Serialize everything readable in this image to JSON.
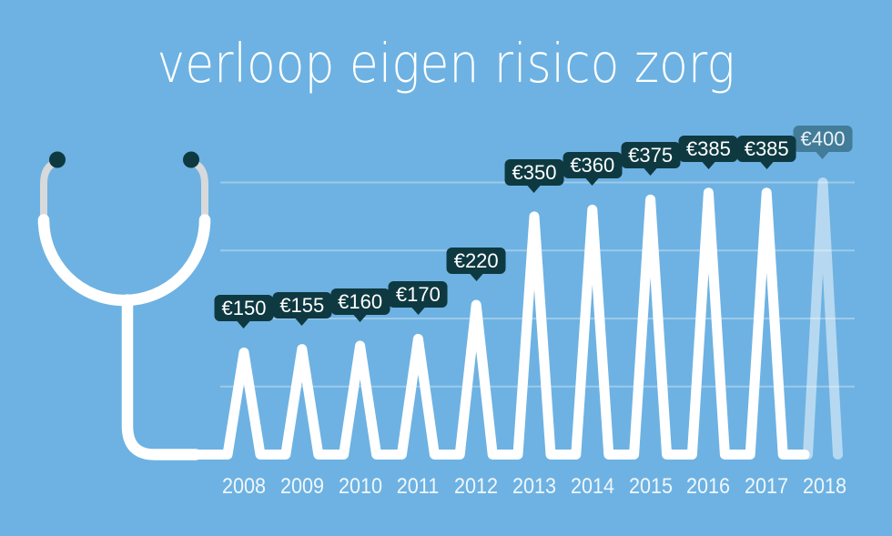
{
  "title": "verloop eigen risico zorg",
  "colors": {
    "background": "#6db2e2",
    "line": "#ffffff",
    "line_faded": "rgba(255,255,255,0.5)",
    "gridline": "rgba(255,255,255,0.32)",
    "badge_bg": "#0e3941",
    "badge_bg_faded": "rgba(14,57,65,0.45)",
    "badge_text": "#ffffff",
    "year_text": "#f0f7fc",
    "ear_tube": "#d7d9da",
    "earpiece": "#0e3941"
  },
  "icons": [
    {
      "name": "stethoscope-icon",
      "description": "stethoscope whose tube flows into the ECG-style chart line"
    }
  ],
  "chart_data": {
    "type": "line",
    "style": "ecg-spike",
    "title": "verloop eigen risico zorg",
    "categories": [
      "2008",
      "2009",
      "2010",
      "2011",
      "2012",
      "2013",
      "2014",
      "2015",
      "2016",
      "2017",
      "2018"
    ],
    "values": [
      150,
      155,
      160,
      170,
      220,
      350,
      360,
      375,
      385,
      385,
      400
    ],
    "point_labels": [
      "€150",
      "€155",
      "€160",
      "€170",
      "€220",
      "€350",
      "€360",
      "€375",
      "€385",
      "€385",
      "€400"
    ],
    "unit": "€",
    "ylim": [
      0,
      400
    ],
    "gridlines_at": [
      100,
      200,
      300,
      400
    ],
    "grid": "on",
    "legend": "none",
    "faded_last_point": true,
    "xlabel": "",
    "ylabel": ""
  }
}
